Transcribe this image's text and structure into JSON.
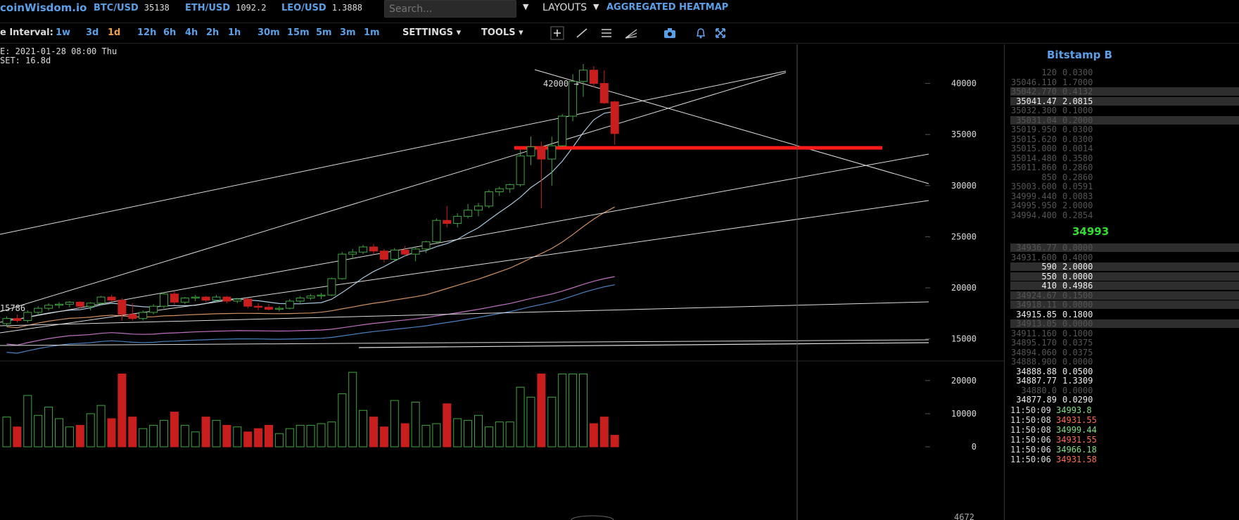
{
  "header": {
    "brand": "coinWisdom.io",
    "tickers": [
      {
        "symbol": "BTC/USD",
        "value": "35138"
      },
      {
        "symbol": "ETH/USD",
        "value": "1092.2"
      },
      {
        "symbol": "LEO/USD",
        "value": "1.3888"
      }
    ],
    "search_placeholder": "Search...",
    "layouts_label": "LAYOUTS",
    "heatmap_label": "AGGREGATED HEATMAP"
  },
  "toolbar": {
    "interval_label": "e Interval:",
    "intervals": [
      "1w",
      "3d",
      "1d",
      "12h",
      "6h",
      "4h",
      "2h",
      "1h",
      "30m",
      "15m",
      "5m",
      "3m",
      "1m"
    ],
    "active_interval": "1d",
    "settings_label": "SETTINGS",
    "tools_label": "TOOLS",
    "tool_icons": [
      "crosshair-icon",
      "line-icon",
      "hlines-icon",
      "fan-icon",
      "camera-icon",
      "bell-icon",
      "fullscreen-icon"
    ]
  },
  "info": {
    "line1": "E: 2021-01-28 08:00 Thu",
    "line2": "SET: 16.8d"
  },
  "chart_data": {
    "type": "candlestick",
    "y_ticks": [
      "40000",
      "35000",
      "30000",
      "25000",
      "20000",
      "15000"
    ],
    "ylim": [
      12500,
      43000
    ],
    "volume_ticks": [
      "20000",
      "10000",
      "0"
    ],
    "volume_ylim": [
      0,
      24000
    ],
    "annotations": [
      "42000 →",
      "15786"
    ],
    "bottom_label": "4672",
    "support_line_price": 33700,
    "candles": [
      [
        16500,
        17200,
        16200,
        17000
      ],
      [
        17000,
        17400,
        16600,
        16800
      ],
      [
        16800,
        17800,
        16600,
        17600
      ],
      [
        17600,
        18200,
        17300,
        18000
      ],
      [
        18000,
        18500,
        17800,
        18300
      ],
      [
        18300,
        18600,
        18000,
        18400
      ],
      [
        18400,
        18700,
        18100,
        18600
      ],
      [
        18600,
        18700,
        18000,
        18200
      ],
      [
        18200,
        18600,
        17800,
        18500
      ],
      [
        18500,
        19200,
        18300,
        19100
      ],
      [
        19100,
        19300,
        18600,
        18800
      ],
      [
        18800,
        19000,
        16800,
        17400
      ],
      [
        17400,
        18500,
        16800,
        17000
      ],
      [
        17000,
        17800,
        16800,
        17600
      ],
      [
        17600,
        18400,
        17400,
        18200
      ],
      [
        18200,
        19600,
        18000,
        19400
      ],
      [
        19400,
        19700,
        18300,
        18600
      ],
      [
        18600,
        19100,
        18400,
        19000
      ],
      [
        19000,
        19300,
        18700,
        19100
      ],
      [
        19100,
        19200,
        18600,
        18800
      ],
      [
        18800,
        19300,
        18600,
        19100
      ],
      [
        19100,
        19200,
        18500,
        18700
      ],
      [
        18700,
        19000,
        18500,
        18900
      ],
      [
        18900,
        19000,
        18000,
        18200
      ],
      [
        18200,
        18500,
        17800,
        18100
      ],
      [
        18100,
        18400,
        17800,
        17900
      ],
      [
        17900,
        18200,
        17700,
        18000
      ],
      [
        18000,
        18900,
        17900,
        18700
      ],
      [
        18700,
        19200,
        18500,
        19000
      ],
      [
        19000,
        19400,
        18800,
        19200
      ],
      [
        19200,
        19500,
        18900,
        19300
      ],
      [
        19300,
        21000,
        19200,
        20900
      ],
      [
        20900,
        23500,
        20800,
        23300
      ],
      [
        23300,
        23800,
        22800,
        23500
      ],
      [
        23500,
        24200,
        23300,
        24000
      ],
      [
        24000,
        24300,
        23300,
        23600
      ],
      [
        23600,
        23800,
        22500,
        22800
      ],
      [
        22800,
        23900,
        22600,
        23700
      ],
      [
        23700,
        24100,
        23100,
        23300
      ],
      [
        23300,
        23900,
        22600,
        23800
      ],
      [
        23800,
        24600,
        23400,
        24500
      ],
      [
        24500,
        26800,
        24300,
        26600
      ],
      [
        26600,
        28000,
        25900,
        26300
      ],
      [
        26300,
        27300,
        25900,
        27000
      ],
      [
        27000,
        28200,
        26800,
        27600
      ],
      [
        27600,
        28300,
        27000,
        28000
      ],
      [
        28000,
        29600,
        27800,
        29400
      ],
      [
        29400,
        29900,
        29000,
        29700
      ],
      [
        29700,
        30200,
        29300,
        30100
      ],
      [
        30100,
        33500,
        29900,
        32900
      ],
      [
        32900,
        34800,
        32000,
        33800
      ],
      [
        33800,
        34300,
        27800,
        32600
      ],
      [
        32600,
        34800,
        30000,
        33900
      ],
      [
        33900,
        37000,
        33800,
        36800
      ],
      [
        36800,
        40900,
        36300,
        40200
      ],
      [
        40200,
        41900,
        38700,
        41300
      ],
      [
        41300,
        41700,
        39600,
        40000
      ],
      [
        40000,
        41300,
        38000,
        38100
      ],
      [
        38200,
        38300,
        34000,
        35100
      ]
    ],
    "volumes": [
      9000,
      6000,
      15500,
      9500,
      12000,
      8500,
      6000,
      6500,
      10000,
      12500,
      8500,
      22000,
      9000,
      5500,
      6500,
      8000,
      10500,
      6500,
      4500,
      9000,
      8000,
      6500,
      6000,
      4500,
      5500,
      6500,
      4000,
      5500,
      6500,
      6500,
      7000,
      7500,
      16000,
      22500,
      11000,
      9000,
      6000,
      14000,
      7000,
      13500,
      6500,
      7000,
      13000,
      8500,
      8000,
      9500,
      6000,
      7500,
      7500,
      18000,
      15000,
      22000,
      15000,
      22000,
      22000,
      22000,
      7000,
      9000,
      3500
    ]
  },
  "orderbook": {
    "title": "Bitstamp B",
    "asks": [
      [
        "120",
        "0.0300"
      ],
      [
        "35046.110",
        "1.7000"
      ],
      [
        "35042.770",
        "0.4132"
      ],
      [
        "35041.47",
        "2.0815"
      ],
      [
        "35032.300",
        "0.1000"
      ],
      [
        "35031.04",
        "0.2000"
      ],
      [
        "35019.950",
        "0.0300"
      ],
      [
        "35015.620",
        "0.0300"
      ],
      [
        "35015.000",
        "0.0014"
      ],
      [
        "35014.480",
        "0.3580"
      ],
      [
        "35011.860",
        "0.2860"
      ],
      [
        "850",
        "0.2860"
      ],
      [
        "35003.600",
        "0.0591"
      ],
      [
        "34999.440",
        "0.0083"
      ],
      [
        "34995.950",
        "2.0000"
      ],
      [
        "34994.400",
        "0.2854"
      ]
    ],
    "mid_price": "34993",
    "bids": [
      [
        "34936.77",
        "0.0000"
      ],
      [
        "34931.600",
        "0.4000"
      ],
      [
        "590",
        "2.0000"
      ],
      [
        "550",
        "0.0000"
      ],
      [
        "410",
        "0.4986"
      ],
      [
        "34924.67",
        "0.1500"
      ],
      [
        "34918.11",
        "0.0000"
      ],
      [
        "34915.85",
        "0.1800"
      ],
      [
        "34913.05",
        "0.0000"
      ],
      [
        "34911.160",
        "0.1000"
      ],
      [
        "34895.170",
        "0.0375"
      ],
      [
        "34894.060",
        "0.0375"
      ],
      [
        "34888.900",
        "0.0000"
      ],
      [
        "34888.88",
        "0.0500"
      ],
      [
        "34887.77",
        "1.3309"
      ],
      [
        "34880.0",
        "0.0000"
      ],
      [
        "34877.89",
        "0.0290"
      ]
    ],
    "trades": [
      [
        "11:50:09",
        "34993.8",
        "buy"
      ],
      [
        "11:50:08",
        "34931.55",
        "sell"
      ],
      [
        "11:50:08",
        "34999.44",
        "buy"
      ],
      [
        "11:50:06",
        "34931.55",
        "sell"
      ],
      [
        "11:50:06",
        "34966.18",
        "buy"
      ],
      [
        "11:50:06",
        "34931.58",
        "sell"
      ]
    ]
  },
  "colors": {
    "up": "#3fa63f",
    "down": "#c81e1e",
    "accent": "#5aa0e8",
    "active": "#f0a040",
    "support": "#ff1a1a"
  }
}
